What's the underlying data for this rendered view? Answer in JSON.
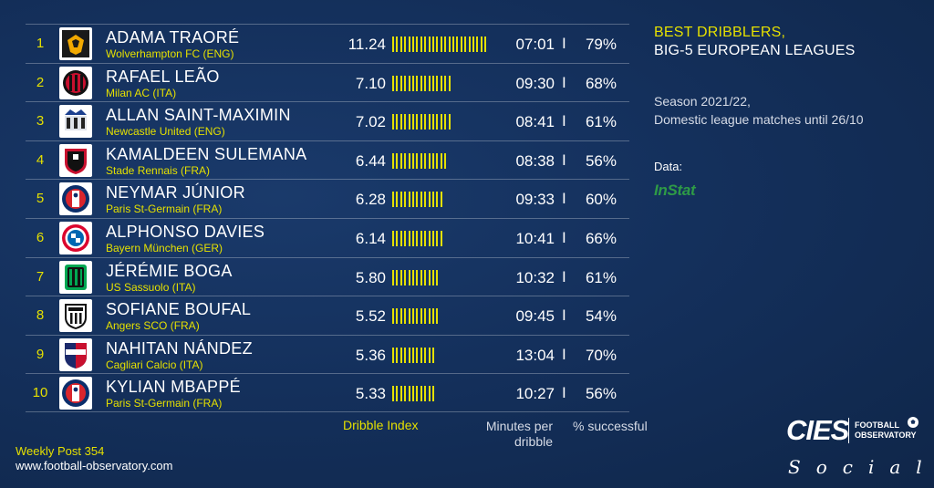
{
  "title": {
    "line1": "BEST DRIBBLERS,",
    "line2": "BIG-5 EUROPEAN LEAGUES"
  },
  "season": {
    "line1": "Season 2021/22,",
    "line2": "Domestic league matches until 26/10"
  },
  "data_label": "Data:",
  "data_source": "InStat",
  "column_headers": {
    "index": "Dribble Index",
    "minutes_line1": "Minutes per",
    "minutes_line2": "dribble",
    "pct": "% successful"
  },
  "separator": "I",
  "footer": {
    "weekly": "Weekly Post 354",
    "site": "www.football-observatory.com"
  },
  "brand": {
    "word": "CIES",
    "fo_line1": "FOOTBALL",
    "fo_line2": "OBSERVATORY",
    "social": "Social"
  },
  "colors": {
    "accent": "#e5e000",
    "background": "#14305c",
    "instat": "#2e9b46"
  },
  "chart_data": {
    "type": "table",
    "title": "BEST DRIBBLERS, BIG-5 EUROPEAN LEAGUES",
    "columns": [
      "Dribble Index",
      "Minutes per dribble",
      "% successful"
    ],
    "rows": [
      {
        "rank": "1",
        "player": "ADAMA TRAORÉ",
        "club": "Wolverhampton FC (ENG)",
        "index": 11.24,
        "index_text": "11.24",
        "minutes": "07:01",
        "pct": "79%",
        "crest": "wolves-crest-icon"
      },
      {
        "rank": "2",
        "player": "RAFAEL LEÃO",
        "club": "Milan AC (ITA)",
        "index": 7.1,
        "index_text": "7.10",
        "minutes": "09:30",
        "pct": "68%",
        "crest": "ac-milan-crest-icon"
      },
      {
        "rank": "3",
        "player": "ALLAN SAINT-MAXIMIN",
        "club": "Newcastle United (ENG)",
        "index": 7.02,
        "index_text": "7.02",
        "minutes": "08:41",
        "pct": "61%",
        "crest": "newcastle-crest-icon"
      },
      {
        "rank": "4",
        "player": "KAMALDEEN SULEMANA",
        "club": "Stade Rennais (FRA)",
        "index": 6.44,
        "index_text": "6.44",
        "minutes": "08:38",
        "pct": "56%",
        "crest": "rennes-crest-icon"
      },
      {
        "rank": "5",
        "player": "NEYMAR JÚNIOR",
        "club": "Paris St-Germain (FRA)",
        "index": 6.28,
        "index_text": "6.28",
        "minutes": "09:33",
        "pct": "60%",
        "crest": "psg-crest-icon"
      },
      {
        "rank": "6",
        "player": "ALPHONSO DAVIES",
        "club": "Bayern München (GER)",
        "index": 6.14,
        "index_text": "6.14",
        "minutes": "10:41",
        "pct": "66%",
        "crest": "bayern-crest-icon"
      },
      {
        "rank": "7",
        "player": "JÉRÉMIE BOGA",
        "club": "US Sassuolo (ITA)",
        "index": 5.8,
        "index_text": "5.80",
        "minutes": "10:32",
        "pct": "61%",
        "crest": "sassuolo-crest-icon"
      },
      {
        "rank": "8",
        "player": "SOFIANE BOUFAL",
        "club": "Angers SCO (FRA)",
        "index": 5.52,
        "index_text": "5.52",
        "minutes": "09:45",
        "pct": "54%",
        "crest": "angers-crest-icon"
      },
      {
        "rank": "9",
        "player": "NAHITAN NÁNDEZ",
        "club": "Cagliari Calcio (ITA)",
        "index": 5.36,
        "index_text": "5.36",
        "minutes": "13:04",
        "pct": "70%",
        "crest": "cagliari-crest-icon"
      },
      {
        "rank": "10",
        "player": "KYLIAN MBAPPÉ",
        "club": "Paris St-Germain (FRA)",
        "index": 5.33,
        "index_text": "5.33",
        "minutes": "10:27",
        "pct": "56%",
        "crest": "psg-crest-icon"
      }
    ]
  }
}
